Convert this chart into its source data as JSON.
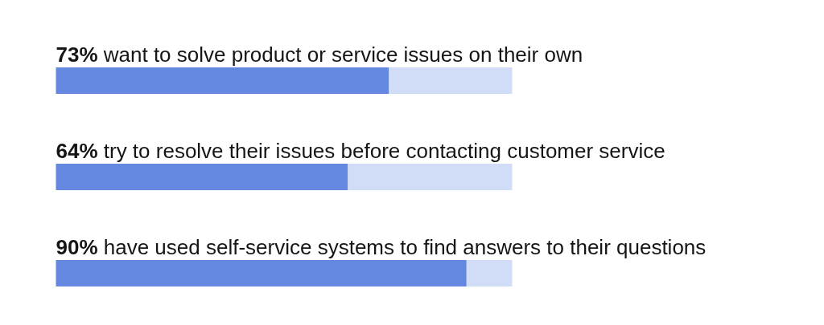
{
  "chart_data": {
    "type": "bar",
    "orientation": "horizontal",
    "stacked": true,
    "categories": [
      "want to solve product or service issues on their own",
      "try to resolve their issues before contacting customer service",
      "have used self-service systems to find answers to their questions"
    ],
    "series": [
      {
        "color": "#6488e0",
        "values": [
          73,
          64,
          90
        ],
        "value_labels": [
          "73%",
          "64%",
          "90%"
        ]
      },
      {
        "color": "#d1dcf6",
        "values": [
          27,
          36,
          10
        ]
      }
    ],
    "xlim": [
      0,
      100
    ]
  }
}
